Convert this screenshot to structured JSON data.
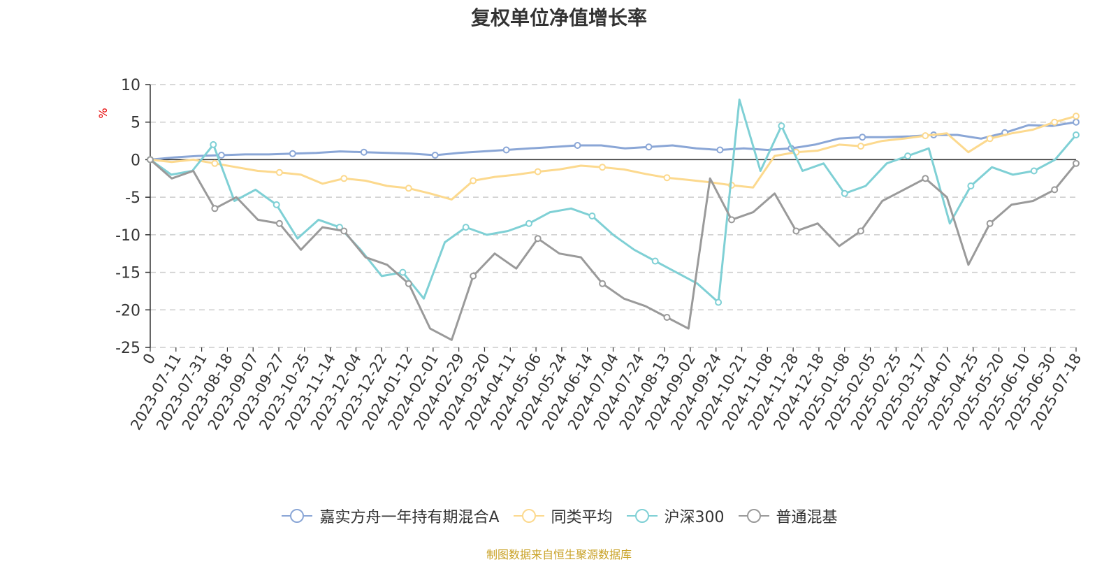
{
  "chart_data": {
    "type": "line",
    "title": "复权单位净值增长率",
    "ylabel": "%",
    "ylim": [
      -25,
      10
    ],
    "yticks": [
      10,
      5,
      0,
      -5,
      -10,
      -15,
      -20,
      -25
    ],
    "x_tick_labels": [
      "0",
      "2023-07-11",
      "2023-07-31",
      "2023-08-18",
      "2023-09-07",
      "2023-09-27",
      "2023-10-25",
      "2023-11-14",
      "2023-12-04",
      "2023-12-22",
      "2024-01-12",
      "2024-02-01",
      "2024-02-29",
      "2024-03-20",
      "2024-04-11",
      "2024-05-06",
      "2024-05-24",
      "2024-06-14",
      "2024-07-04",
      "2024-07-24",
      "2024-08-13",
      "2024-09-02",
      "2024-09-24",
      "2024-10-21",
      "2024-11-08",
      "2024-11-28",
      "2024-12-18",
      "2025-01-08",
      "2025-02-05",
      "2025-02-25",
      "2025-03-17",
      "2025-04-07",
      "2025-04-25",
      "2025-05-20",
      "2025-06-10",
      "2025-06-30",
      "2025-07-18"
    ],
    "grid": "horizontal dashed",
    "legend_position": "bottom",
    "series": [
      {
        "name": "嘉实方舟一年持有期混合A",
        "color": "#8aa6d6",
        "values": [
          0,
          0.3,
          0.5,
          0.6,
          0.7,
          0.7,
          0.8,
          0.9,
          1.1,
          1.0,
          0.9,
          0.8,
          0.6,
          0.9,
          1.1,
          1.3,
          1.5,
          1.7,
          1.9,
          1.9,
          1.5,
          1.7,
          1.9,
          1.5,
          1.3,
          1.5,
          1.3,
          1.5,
          2.0,
          2.8,
          3.0,
          3.0,
          3.1,
          3.3,
          3.3,
          2.8,
          3.6,
          4.6,
          4.5,
          5.0
        ]
      },
      {
        "name": "同类平均",
        "color": "#fcd98e",
        "values": [
          0,
          -0.3,
          0,
          -0.5,
          -1.0,
          -1.5,
          -1.7,
          -2.0,
          -3.2,
          -2.5,
          -2.8,
          -3.5,
          -3.8,
          -4.5,
          -5.3,
          -2.8,
          -2.3,
          -2.0,
          -1.6,
          -1.3,
          -0.8,
          -1.0,
          -1.3,
          -1.9,
          -2.4,
          -2.7,
          -3.0,
          -3.4,
          -3.7,
          0.5,
          1.0,
          1.2,
          2.0,
          1.8,
          2.5,
          2.8,
          3.2,
          3.5,
          1.0,
          2.8,
          3.5,
          4.0,
          5.0,
          5.8
        ]
      },
      {
        "name": "沪深300",
        "color": "#7fd0d5",
        "values": [
          0,
          -2.0,
          -1.5,
          2.0,
          -5.5,
          -4.0,
          -6.0,
          -10.5,
          -8.0,
          -9.0,
          -12.0,
          -15.5,
          -15.0,
          -18.5,
          -11.0,
          -9.0,
          -10.0,
          -9.5,
          -8.5,
          -7.0,
          -6.5,
          -7.5,
          -10.0,
          -12.0,
          -13.5,
          -15.0,
          -16.5,
          -19.0,
          8.0,
          -1.5,
          4.5,
          -1.5,
          -0.5,
          -4.5,
          -3.5,
          -0.5,
          0.5,
          1.5,
          -8.5,
          -3.5,
          -1.0,
          -2.0,
          -1.5,
          0,
          3.3
        ]
      },
      {
        "name": "普通混基",
        "color": "#9a9a9a",
        "values": [
          0,
          -2.5,
          -1.5,
          -6.5,
          -5.0,
          -8.0,
          -8.5,
          -12.0,
          -9.0,
          -9.5,
          -13.0,
          -14.0,
          -16.5,
          -22.5,
          -24.0,
          -15.5,
          -12.5,
          -14.5,
          -10.5,
          -12.5,
          -13.0,
          -16.5,
          -18.5,
          -19.5,
          -21.0,
          -22.5,
          -2.5,
          -8.0,
          -7.0,
          -4.5,
          -9.5,
          -8.5,
          -11.5,
          -9.5,
          -5.5,
          -4.0,
          -2.5,
          -5.0,
          -14.0,
          -8.5,
          -6.0,
          -5.5,
          -4.0,
          -0.5
        ]
      }
    ]
  },
  "source_text": "制图数据来自恒生聚源数据库"
}
